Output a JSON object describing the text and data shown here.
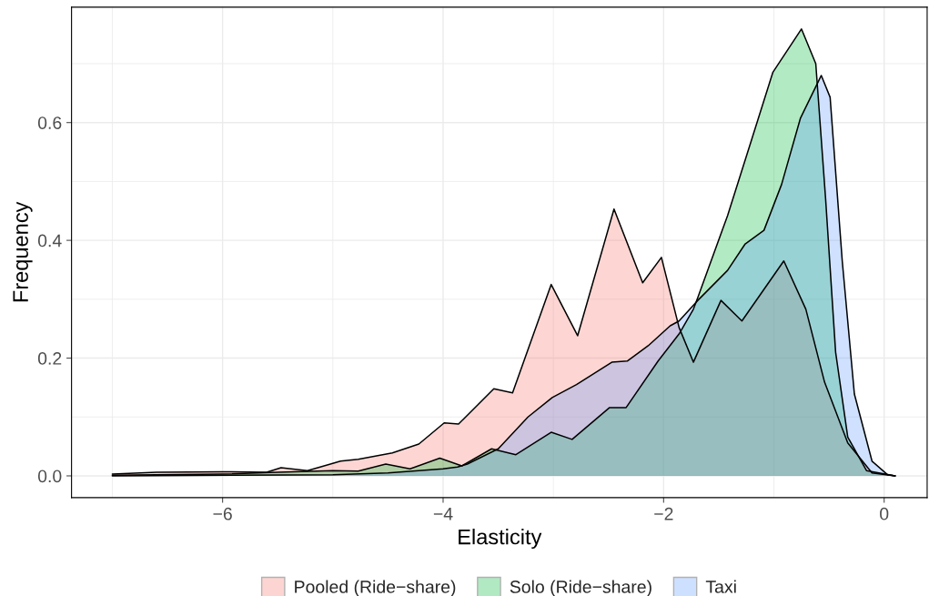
{
  "chart_data": {
    "type": "area",
    "xlabel": "Elasticity",
    "ylabel": "Frequency",
    "xlim": [
      -7.37,
      0.39
    ],
    "ylim": [
      -0.037,
      0.796
    ],
    "xticks": [
      {
        "value": -6,
        "label": "−6"
      },
      {
        "value": -4,
        "label": "−4"
      },
      {
        "value": -2,
        "label": "−2"
      },
      {
        "value": 0,
        "label": "0"
      }
    ],
    "yticks": [
      {
        "value": 0,
        "label": "0.0"
      },
      {
        "value": 0.2,
        "label": "0.2"
      },
      {
        "value": 0.4,
        "label": "0.4"
      },
      {
        "value": 0.6,
        "label": "0.6"
      }
    ],
    "grid": true,
    "legend": "bottom",
    "series": [
      {
        "name": "Pooled (Ride−share)",
        "color": "#f8766d",
        "x": [
          -7.0,
          -6.6,
          -6.0,
          -5.6,
          -5.47,
          -5.23,
          -4.93,
          -4.77,
          -4.46,
          -4.22,
          -3.99,
          -3.86,
          -3.54,
          -3.37,
          -3.02,
          -2.78,
          -2.45,
          -2.19,
          -2.02,
          -1.86,
          -1.73,
          -1.48,
          -1.29,
          -0.91,
          -0.71,
          -0.54,
          -0.33,
          -0.11,
          0.1
        ],
        "values": [
          0.003,
          0.006,
          0.007,
          0.006,
          0.014,
          0.009,
          0.025,
          0.028,
          0.039,
          0.054,
          0.09,
          0.088,
          0.148,
          0.141,
          0.325,
          0.238,
          0.453,
          0.328,
          0.371,
          0.252,
          0.193,
          0.298,
          0.263,
          0.365,
          0.283,
          0.159,
          0.056,
          0.005,
          0.0
        ]
      },
      {
        "name": "Solo (Ride−share)",
        "color": "#00ba38",
        "x": [
          -7.0,
          -6.0,
          -5.5,
          -5.0,
          -4.77,
          -4.52,
          -4.3,
          -4.03,
          -3.83,
          -3.56,
          -3.34,
          -3.02,
          -2.83,
          -2.49,
          -2.34,
          -2.05,
          -1.86,
          -1.73,
          -1.69,
          -1.42,
          -1.2,
          -1.01,
          -0.75,
          -0.62,
          -0.53,
          -0.44,
          -0.33,
          -0.16,
          0.1
        ],
        "values": [
          0.001,
          0.003,
          0.006,
          0.009,
          0.008,
          0.02,
          0.012,
          0.03,
          0.017,
          0.046,
          0.036,
          0.074,
          0.062,
          0.116,
          0.116,
          0.195,
          0.241,
          0.283,
          0.303,
          0.442,
          0.572,
          0.685,
          0.759,
          0.7,
          0.468,
          0.21,
          0.066,
          0.009,
          0.0
        ]
      },
      {
        "name": "Taxi",
        "color": "#619cff",
        "x": [
          -7.0,
          -5.0,
          -4.5,
          -4.0,
          -3.87,
          -3.78,
          -3.5,
          -3.23,
          -3.01,
          -2.79,
          -2.47,
          -2.33,
          -2.14,
          -1.94,
          -1.86,
          -1.69,
          -1.42,
          -1.26,
          -1.09,
          -0.93,
          -0.76,
          -0.57,
          -0.49,
          -0.38,
          -0.27,
          -0.11,
          0.03,
          0.1
        ],
        "values": [
          0.0,
          0.002,
          0.005,
          0.012,
          0.015,
          0.02,
          0.046,
          0.1,
          0.133,
          0.155,
          0.193,
          0.195,
          0.221,
          0.255,
          0.263,
          0.298,
          0.349,
          0.394,
          0.417,
          0.495,
          0.607,
          0.68,
          0.643,
          0.365,
          0.139,
          0.025,
          0.002,
          0.0
        ]
      }
    ]
  }
}
